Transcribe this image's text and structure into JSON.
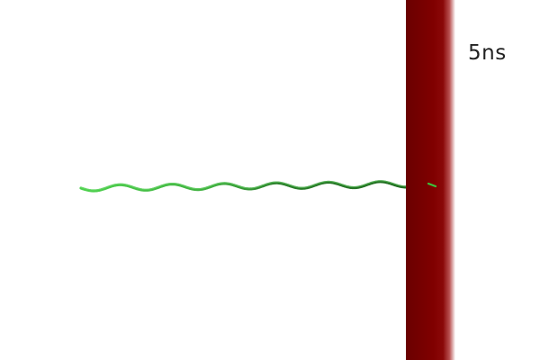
{
  "scene": {
    "time_label": "5ns",
    "colors": {
      "membrane_dark": "#5c0000",
      "membrane_mid": "#8b0000",
      "membrane_light": "#ffffff",
      "helix_light": "#4cd14c",
      "helix_dark": "#1e6b1e",
      "background": "#ffffff"
    }
  }
}
